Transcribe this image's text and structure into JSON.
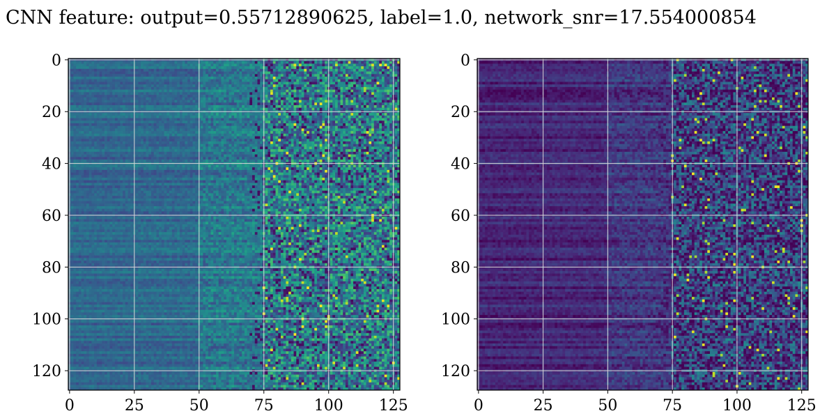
{
  "chart_data": {
    "type": "heatmap",
    "title": "CNN feature: output=0.55712890625, label=1.0, network_snr=17.554000854",
    "colormap": "viridis",
    "grid": true,
    "panels": [
      {
        "name": "",
        "rows": 128,
        "cols": 128,
        "xlim": [
          0,
          127
        ],
        "ylim": [
          127,
          0
        ],
        "xticks": [
          "0",
          "25",
          "50",
          "75",
          "100",
          "125"
        ],
        "yticks": [
          "0",
          "20",
          "40",
          "60",
          "80",
          "100",
          "120"
        ],
        "column_intensity": [
          {
            "from": 0,
            "to": 25,
            "mean": 0.33,
            "spread": 0.05
          },
          {
            "from": 25,
            "to": 50,
            "mean": 0.34,
            "spread": 0.06
          },
          {
            "from": 50,
            "to": 75,
            "mean": 0.4,
            "spread": 0.12
          },
          {
            "from": 75,
            "to": 128,
            "mean": 0.42,
            "spread": 0.3
          }
        ]
      },
      {
        "name": "",
        "rows": 128,
        "cols": 128,
        "xlim": [
          0,
          127
        ],
        "ylim": [
          127,
          0
        ],
        "xticks": [
          "0",
          "25",
          "50",
          "75",
          "100",
          "125"
        ],
        "yticks": [
          "0",
          "20",
          "40",
          "60",
          "80",
          "100",
          "120"
        ],
        "column_intensity": [
          {
            "from": 0,
            "to": 25,
            "mean": 0.1,
            "spread": 0.05
          },
          {
            "from": 25,
            "to": 50,
            "mean": 0.11,
            "spread": 0.05
          },
          {
            "from": 50,
            "to": 75,
            "mean": 0.16,
            "spread": 0.09
          },
          {
            "from": 75,
            "to": 128,
            "mean": 0.2,
            "spread": 0.26
          }
        ]
      }
    ]
  }
}
